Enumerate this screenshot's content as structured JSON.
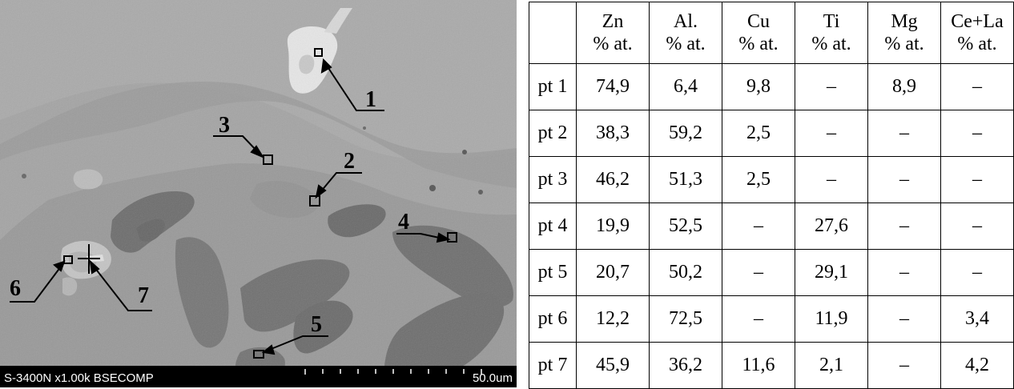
{
  "image": {
    "caption": "S-3400N x1.00k BSECOMP",
    "scale": "50.0um",
    "markers": [
      "1",
      "2",
      "3",
      "4",
      "5",
      "6",
      "7"
    ]
  },
  "table": {
    "columns": [
      {
        "name": "Zn",
        "unit": "% at."
      },
      {
        "name": "Al.",
        "unit": "% at."
      },
      {
        "name": "Cu",
        "unit": "% at."
      },
      {
        "name": "Ti",
        "unit": "% at."
      },
      {
        "name": "Mg",
        "unit": "% at."
      },
      {
        "name": "Ce+La",
        "unit": "% at."
      }
    ],
    "rows": [
      {
        "label": "pt 1",
        "values": [
          "74,9",
          "6,4",
          "9,8",
          "–",
          "8,9",
          "–"
        ]
      },
      {
        "label": "pt 2",
        "values": [
          "38,3",
          "59,2",
          "2,5",
          "–",
          "–",
          "–"
        ]
      },
      {
        "label": "pt 3",
        "values": [
          "46,2",
          "51,3",
          "2,5",
          "–",
          "–",
          "–"
        ]
      },
      {
        "label": "pt 4",
        "values": [
          "19,9",
          "52,5",
          "–",
          "27,6",
          "–",
          "–"
        ]
      },
      {
        "label": "pt 5",
        "values": [
          "20,7",
          "50,2",
          "–",
          "29,1",
          "–",
          "–"
        ]
      },
      {
        "label": "pt 6",
        "values": [
          "12,2",
          "72,5",
          "–",
          "11,9",
          "–",
          "3,4"
        ]
      },
      {
        "label": "pt 7",
        "values": [
          "45,9",
          "36,2",
          "11,6",
          "2,1",
          "–",
          "4,2"
        ]
      }
    ]
  }
}
